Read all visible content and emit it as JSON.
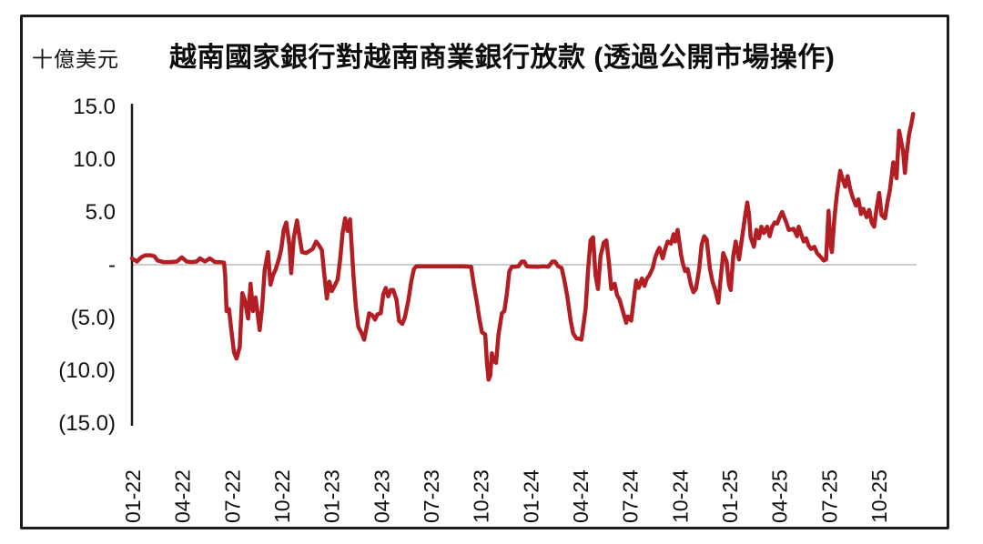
{
  "page": {
    "background": "#ffffff"
  },
  "chart": {
    "unit_label": "十億美元",
    "title": "越南國家銀行對越南商業銀行放款 (透過公開市場操作)",
    "colors": {
      "line": "#b21e23",
      "axis": "#1a1a1a",
      "grid": "#cccccc",
      "frame": "#1b1b1b",
      "text": "#111111"
    }
  },
  "chart_data": {
    "type": "line",
    "title": "越南國家銀行對越南商業銀行放款 (透過公開市場操作)",
    "ylabel": "十億美元",
    "ylim": [
      -15,
      15
    ],
    "grid": "zero-line-only",
    "legend": "none",
    "x_unit": "months since 2022-01",
    "y_ticks": [
      {
        "label": "15.0",
        "value": 15
      },
      {
        "label": "10.0",
        "value": 10
      },
      {
        "label": "5.0",
        "value": 5
      },
      {
        "label": "-",
        "value": 0
      },
      {
        "label": "(5.0)",
        "value": -5
      },
      {
        "label": "(10.0)",
        "value": -10
      },
      {
        "label": "(15.0)",
        "value": -15
      }
    ],
    "x_ticks": [
      {
        "label": "01-22",
        "month": 0
      },
      {
        "label": "04-22",
        "month": 3
      },
      {
        "label": "07-22",
        "month": 6
      },
      {
        "label": "10-22",
        "month": 9
      },
      {
        "label": "01-23",
        "month": 12
      },
      {
        "label": "04-23",
        "month": 15
      },
      {
        "label": "07-23",
        "month": 18
      },
      {
        "label": "10-23",
        "month": 21
      },
      {
        "label": "01-24",
        "month": 24
      },
      {
        "label": "04-24",
        "month": 27
      },
      {
        "label": "07-24",
        "month": 30
      },
      {
        "label": "10-24",
        "month": 33
      },
      {
        "label": "01-25",
        "month": 36
      },
      {
        "label": "04-25",
        "month": 39
      },
      {
        "label": "07-25",
        "month": 42
      },
      {
        "label": "10-25",
        "month": 45
      }
    ],
    "series": [
      {
        "color": "#b21e23",
        "points": [
          [
            0,
            0.6
          ],
          [
            0.3,
            0.3
          ],
          [
            0.55,
            0.7
          ],
          [
            0.8,
            0.9
          ],
          [
            1.1,
            0.9
          ],
          [
            1.35,
            0.8
          ],
          [
            1.55,
            0.4
          ],
          [
            1.9,
            0.25
          ],
          [
            2.3,
            0.25
          ],
          [
            2.7,
            0.3
          ],
          [
            3.0,
            0.7
          ],
          [
            3.3,
            0.3
          ],
          [
            3.6,
            0.25
          ],
          [
            3.9,
            0.3
          ],
          [
            4.1,
            0.6
          ],
          [
            4.4,
            0.3
          ],
          [
            4.7,
            0.6
          ],
          [
            5.0,
            0.25
          ],
          [
            5.3,
            0.25
          ],
          [
            5.55,
            0.2
          ],
          [
            5.62,
            -1.0
          ],
          [
            5.7,
            -4.4
          ],
          [
            5.85,
            -4.2
          ],
          [
            6.0,
            -6.3
          ],
          [
            6.15,
            -8.3
          ],
          [
            6.3,
            -8.9
          ],
          [
            6.5,
            -7.8
          ],
          [
            6.65,
            -2.7
          ],
          [
            6.8,
            -3.3
          ],
          [
            7.0,
            -5.1
          ],
          [
            7.15,
            -1.8
          ],
          [
            7.3,
            -4.4
          ],
          [
            7.45,
            -3.1
          ],
          [
            7.7,
            -6.2
          ],
          [
            7.85,
            -4.0
          ],
          [
            8.0,
            -0.5
          ],
          [
            8.2,
            1.2
          ],
          [
            8.35,
            -1.9
          ],
          [
            8.5,
            -1.0
          ],
          [
            8.65,
            -0.5
          ],
          [
            8.85,
            0.5
          ],
          [
            9.0,
            1.5
          ],
          [
            9.15,
            3.3
          ],
          [
            9.3,
            4.0
          ],
          [
            9.5,
            1.8
          ],
          [
            9.6,
            -0.8
          ],
          [
            9.75,
            2.5
          ],
          [
            9.95,
            4.2
          ],
          [
            10.1,
            2.7
          ],
          [
            10.25,
            1.2
          ],
          [
            10.5,
            1.1
          ],
          [
            10.7,
            1.3
          ],
          [
            10.9,
            1.5
          ],
          [
            11.1,
            2.2
          ],
          [
            11.25,
            1.9
          ],
          [
            11.45,
            1.4
          ],
          [
            11.6,
            -1.0
          ],
          [
            11.75,
            -3.2
          ],
          [
            11.9,
            -1.6
          ],
          [
            12.05,
            -2.5
          ],
          [
            12.25,
            -1.9
          ],
          [
            12.4,
            -1.4
          ],
          [
            12.55,
            0.5
          ],
          [
            12.7,
            3.0
          ],
          [
            12.85,
            4.4
          ],
          [
            13.0,
            3.2
          ],
          [
            13.15,
            4.3
          ],
          [
            13.35,
            -1.0
          ],
          [
            13.5,
            -4.0
          ],
          [
            13.65,
            -5.9
          ],
          [
            13.85,
            -6.5
          ],
          [
            14.0,
            -7.1
          ],
          [
            14.15,
            -5.9
          ],
          [
            14.3,
            -4.6
          ],
          [
            14.5,
            -4.8
          ],
          [
            14.65,
            -5.2
          ],
          [
            14.8,
            -4.7
          ],
          [
            15.0,
            -4.6
          ],
          [
            15.15,
            -2.8
          ],
          [
            15.3,
            -2.2
          ],
          [
            15.45,
            -3.0
          ],
          [
            15.6,
            -2.4
          ],
          [
            15.75,
            -2.4
          ],
          [
            15.95,
            -3.3
          ],
          [
            16.1,
            -5.3
          ],
          [
            16.3,
            -5.6
          ],
          [
            16.45,
            -5.0
          ],
          [
            16.65,
            -3.5
          ],
          [
            16.85,
            -1.5
          ],
          [
            17.0,
            -0.4
          ],
          [
            17.15,
            -0.15
          ],
          [
            18.0,
            -0.15
          ],
          [
            19.0,
            -0.15
          ],
          [
            20.0,
            -0.15
          ],
          [
            20.45,
            -0.2
          ],
          [
            20.6,
            -1.8
          ],
          [
            20.8,
            -3.6
          ],
          [
            20.95,
            -5.2
          ],
          [
            21.1,
            -6.4
          ],
          [
            21.3,
            -6.6
          ],
          [
            21.4,
            -9.3
          ],
          [
            21.5,
            -10.9
          ],
          [
            21.6,
            -10.5
          ],
          [
            21.7,
            -8.4
          ],
          [
            21.8,
            -9.1
          ],
          [
            21.95,
            -9.3
          ],
          [
            22.1,
            -6.6
          ],
          [
            22.3,
            -4.6
          ],
          [
            22.45,
            -4.4
          ],
          [
            22.6,
            -2.8
          ],
          [
            22.75,
            -0.6
          ],
          [
            22.9,
            -0.2
          ],
          [
            23.1,
            -0.2
          ],
          [
            23.3,
            -0.15
          ],
          [
            23.5,
            0.3
          ],
          [
            23.65,
            0.3
          ],
          [
            23.8,
            -0.15
          ],
          [
            24.2,
            -0.2
          ],
          [
            24.5,
            -0.2
          ],
          [
            24.8,
            -0.15
          ],
          [
            25.1,
            -0.2
          ],
          [
            25.35,
            0.3
          ],
          [
            25.5,
            0.3
          ],
          [
            25.7,
            -0.15
          ],
          [
            25.9,
            -0.3
          ],
          [
            26.05,
            -1.3
          ],
          [
            26.25,
            -3.0
          ],
          [
            26.45,
            -5.3
          ],
          [
            26.6,
            -6.5
          ],
          [
            26.8,
            -7.0
          ],
          [
            26.95,
            -7.0
          ],
          [
            27.1,
            -7.1
          ],
          [
            27.35,
            -4.2
          ],
          [
            27.5,
            -0.5
          ],
          [
            27.65,
            2.3
          ],
          [
            27.8,
            2.6
          ],
          [
            27.95,
            -1.0
          ],
          [
            28.1,
            -2.3
          ],
          [
            28.25,
            0.8
          ],
          [
            28.45,
            2.1
          ],
          [
            28.6,
            2.3
          ],
          [
            28.75,
            0.3
          ],
          [
            28.9,
            -2.3
          ],
          [
            29.1,
            -1.8
          ],
          [
            29.25,
            -2.9
          ],
          [
            29.4,
            -3.3
          ],
          [
            29.65,
            -4.7
          ],
          [
            29.8,
            -5.5
          ],
          [
            29.9,
            -4.9
          ],
          [
            30.1,
            -5.3
          ],
          [
            30.25,
            -3.4
          ],
          [
            30.4,
            -1.5
          ],
          [
            30.55,
            -2.2
          ],
          [
            30.75,
            -1.3
          ],
          [
            30.9,
            -2.0
          ],
          [
            31.05,
            -1.3
          ],
          [
            31.2,
            -1.0
          ],
          [
            31.4,
            -0.3
          ],
          [
            31.55,
            0.7
          ],
          [
            31.7,
            1.3
          ],
          [
            31.8,
            1.6
          ],
          [
            32.0,
            0.6
          ],
          [
            32.15,
            1.5
          ],
          [
            32.3,
            2.2
          ],
          [
            32.5,
            2.0
          ],
          [
            32.65,
            2.9
          ],
          [
            32.75,
            2.2
          ],
          [
            32.9,
            3.3
          ],
          [
            33.1,
            1.0
          ],
          [
            33.2,
            0.2
          ],
          [
            33.35,
            -0.6
          ],
          [
            33.5,
            -0.4
          ],
          [
            33.7,
            -1.9
          ],
          [
            33.85,
            -2.6
          ],
          [
            34.0,
            -2.3
          ],
          [
            34.2,
            -0.4
          ],
          [
            34.35,
            1.9
          ],
          [
            34.5,
            2.7
          ],
          [
            34.65,
            2.4
          ],
          [
            34.85,
            -0.4
          ],
          [
            35.0,
            -1.6
          ],
          [
            35.15,
            -2.3
          ],
          [
            35.35,
            -3.6
          ],
          [
            35.5,
            -1.2
          ],
          [
            35.65,
            1.1
          ],
          [
            35.85,
            0.3
          ],
          [
            36.0,
            -1.9
          ],
          [
            36.1,
            -2.4
          ],
          [
            36.25,
            0.8
          ],
          [
            36.4,
            2.2
          ],
          [
            36.5,
            1.3
          ],
          [
            36.6,
            0.5
          ],
          [
            36.75,
            2.2
          ],
          [
            36.95,
            4.4
          ],
          [
            37.1,
            5.9
          ],
          [
            37.2,
            4.8
          ],
          [
            37.3,
            2.6
          ],
          [
            37.5,
            1.7
          ],
          [
            37.65,
            3.3
          ],
          [
            37.8,
            2.5
          ],
          [
            37.95,
            3.6
          ],
          [
            38.1,
            3.0
          ],
          [
            38.3,
            3.6
          ],
          [
            38.45,
            2.7
          ],
          [
            38.6,
            3.6
          ],
          [
            38.75,
            4.0
          ],
          [
            38.9,
            3.9
          ],
          [
            39.1,
            4.7
          ],
          [
            39.2,
            5.0
          ],
          [
            39.45,
            4.0
          ],
          [
            39.6,
            3.3
          ],
          [
            39.9,
            3.4
          ],
          [
            40.1,
            2.7
          ],
          [
            40.2,
            3.6
          ],
          [
            40.5,
            2.2
          ],
          [
            40.65,
            2.5
          ],
          [
            40.8,
            1.8
          ],
          [
            40.95,
            1.5
          ],
          [
            41.15,
            1.7
          ],
          [
            41.3,
            1.1
          ],
          [
            41.55,
            0.7
          ],
          [
            41.7,
            0.4
          ],
          [
            41.85,
            0.5
          ],
          [
            42.0,
            5.1
          ],
          [
            42.1,
            2.1
          ],
          [
            42.2,
            1.2
          ],
          [
            42.35,
            4.4
          ],
          [
            42.5,
            6.6
          ],
          [
            42.7,
            8.9
          ],
          [
            42.85,
            8.1
          ],
          [
            43.0,
            7.4
          ],
          [
            43.15,
            8.4
          ],
          [
            43.3,
            7.2
          ],
          [
            43.45,
            6.4
          ],
          [
            43.65,
            5.6
          ],
          [
            43.8,
            6.2
          ],
          [
            43.95,
            4.8
          ],
          [
            44.1,
            5.3
          ],
          [
            44.3,
            4.5
          ],
          [
            44.45,
            5.2
          ],
          [
            44.6,
            4.0
          ],
          [
            44.75,
            3.6
          ],
          [
            44.9,
            5.4
          ],
          [
            45.05,
            6.8
          ],
          [
            45.2,
            4.7
          ],
          [
            45.4,
            4.4
          ],
          [
            45.55,
            5.9
          ],
          [
            45.7,
            7.1
          ],
          [
            45.9,
            9.7
          ],
          [
            46.0,
            8.9
          ],
          [
            46.1,
            8.2
          ],
          [
            46.25,
            12.7
          ],
          [
            46.4,
            11.5
          ],
          [
            46.5,
            10.7
          ],
          [
            46.6,
            8.7
          ],
          [
            46.7,
            10.4
          ],
          [
            46.85,
            12.3
          ],
          [
            47.0,
            13.4
          ],
          [
            47.1,
            14.3
          ]
        ]
      }
    ]
  }
}
